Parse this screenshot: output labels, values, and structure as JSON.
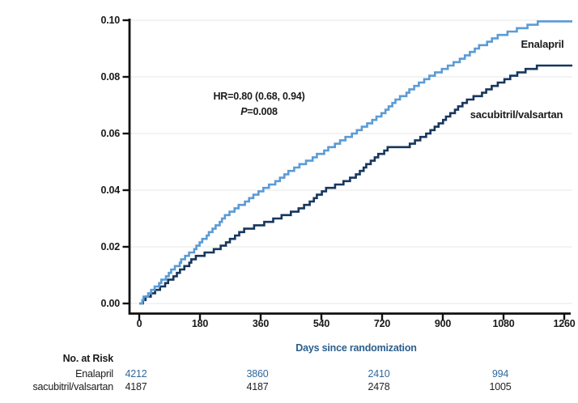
{
  "chart_data": {
    "type": "line",
    "subtype": "kaplan-meier-cumulative-incidence-step-curves",
    "title": "",
    "xlabel": "Days since randomization",
    "ylabel": "",
    "xlim": [
      0,
      1260
    ],
    "ylim": [
      0,
      0.1
    ],
    "xticks": [
      "0",
      "180",
      "360",
      "540",
      "720",
      "900",
      "1080",
      "1260"
    ],
    "yticks": [
      "0.00",
      "0.02",
      "0.04",
      "0.06",
      "0.08",
      "0.10"
    ],
    "grid": true,
    "legend_position": "inline-labels-right",
    "annotation": {
      "hr_text": "HR=0.80 (0.68, 0.94)",
      "p_label": "P",
      "p_value": "=0.008"
    },
    "series": [
      {
        "name": "Enalapril",
        "color": "#5B9BD5",
        "points": [
          [
            0,
            0
          ],
          [
            170,
            0.02
          ],
          [
            260,
            0.0315
          ],
          [
            360,
            0.0395
          ],
          [
            450,
            0.0467
          ],
          [
            550,
            0.0538
          ],
          [
            640,
            0.06
          ],
          [
            715,
            0.0663
          ],
          [
            745,
            0.07
          ],
          [
            860,
            0.08
          ],
          [
            930,
            0.0845
          ],
          [
            1000,
            0.09
          ],
          [
            1075,
            0.0948
          ],
          [
            1140,
            0.0975
          ],
          [
            1205,
            0.1
          ],
          [
            1260,
            0.1
          ]
        ]
      },
      {
        "name": "sacubitril/valsartan",
        "color": "#17365D",
        "points": [
          [
            0,
            0
          ],
          [
            90,
            0.008
          ],
          [
            170,
            0.0163
          ],
          [
            245,
            0.02
          ],
          [
            307,
            0.0257
          ],
          [
            410,
            0.03
          ],
          [
            480,
            0.0335
          ],
          [
            552,
            0.04
          ],
          [
            600,
            0.0425
          ],
          [
            650,
            0.0455
          ],
          [
            700,
            0.0515
          ],
          [
            739,
            0.0548
          ],
          [
            800,
            0.0557
          ],
          [
            860,
            0.06
          ],
          [
            958,
            0.0705
          ],
          [
            1022,
            0.0743
          ],
          [
            1100,
            0.08
          ],
          [
            1150,
            0.0825
          ],
          [
            1180,
            0.0835
          ],
          [
            1260,
            0.0835
          ]
        ]
      }
    ],
    "at_risk": {
      "title": "No. at Risk",
      "days": [
        0,
        360,
        720,
        1080
      ],
      "rows": [
        {
          "label": "Enalapril",
          "color": "#31689B",
          "values": [
            "4212",
            "3860",
            "2410",
            "994"
          ]
        },
        {
          "label": "sacubitril/valsartan",
          "color": "#222222",
          "values": [
            "4187",
            "4187",
            "2478",
            "1005"
          ]
        }
      ]
    },
    "colors": {
      "x_axis_title": "#2B5E8C",
      "axis": "#111111",
      "gridline": "#E7E7E7",
      "enalapril_curve": "#5B9BD5",
      "sacubitril_curve": "#17365D"
    }
  }
}
